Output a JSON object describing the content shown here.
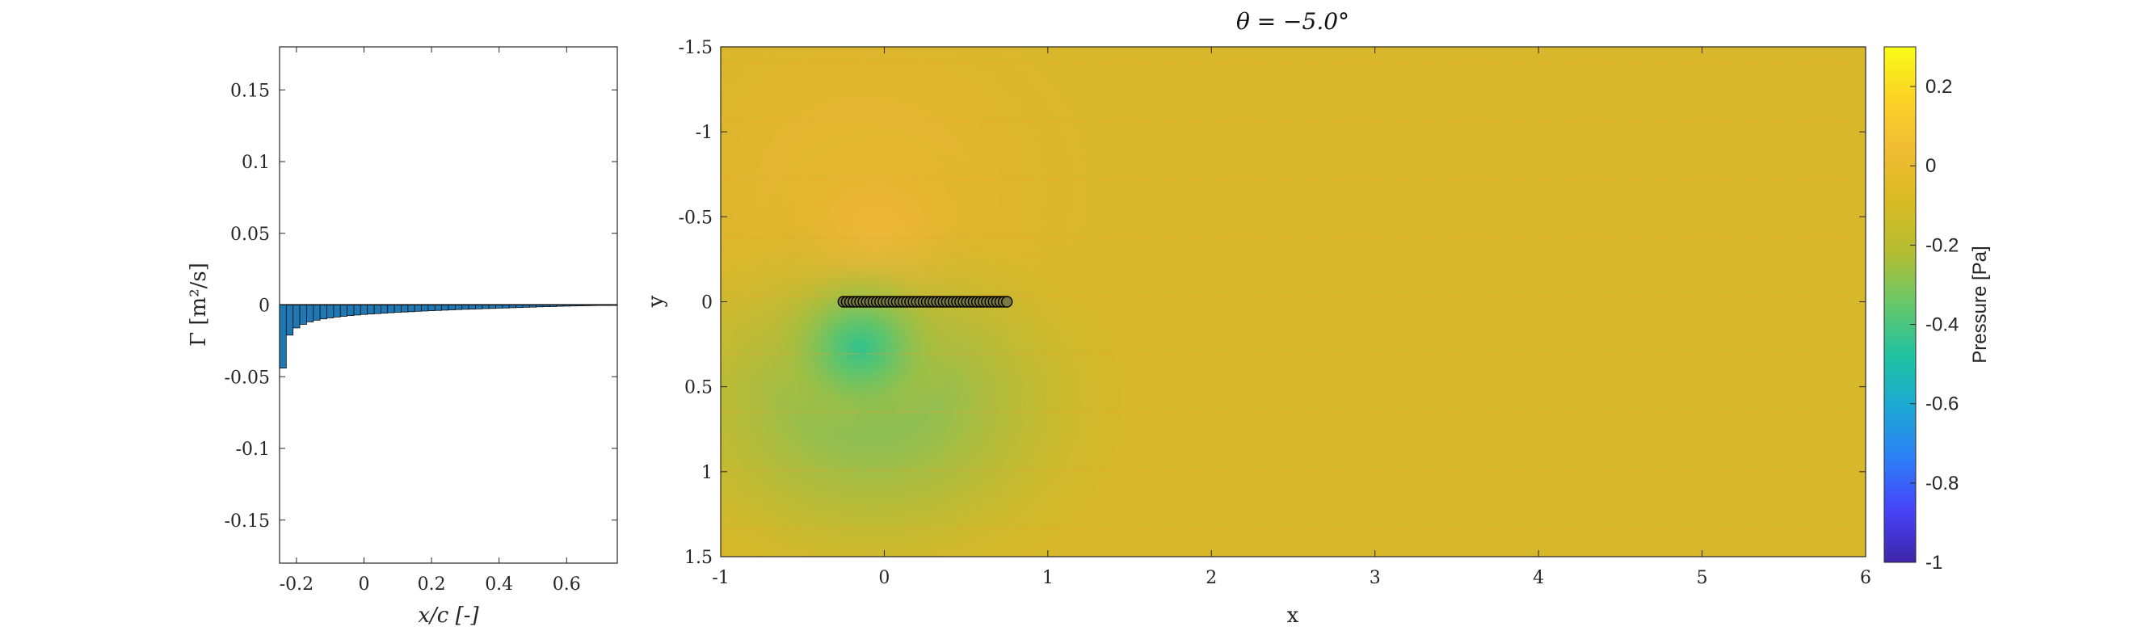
{
  "chart_data": [
    {
      "type": "bar",
      "name": "circulation",
      "xlabel": "x/c [-]",
      "ylabel": "Γ [m²/s]",
      "xlim": [
        -0.25,
        0.75
      ],
      "ylim": [
        -0.18,
        0.18
      ],
      "xticks": [
        -0.2,
        0,
        0.2,
        0.4,
        0.6
      ],
      "xtick_labels": [
        "-0.2",
        "0",
        "0.2",
        "0.4",
        "0.6"
      ],
      "yticks": [
        -0.15,
        -0.1,
        -0.05,
        0,
        0.05,
        0.1,
        0.15
      ],
      "ytick_labels": [
        "-0.15",
        "-0.1",
        "-0.05",
        "0",
        "0.05",
        "0.1",
        "0.15"
      ],
      "bar_color": "#1f78b4",
      "x": [
        -0.24,
        -0.22,
        -0.2,
        -0.18,
        -0.16,
        -0.14,
        -0.12,
        -0.1,
        -0.08,
        -0.06,
        -0.04,
        -0.02,
        0.0,
        0.02,
        0.04,
        0.06,
        0.08,
        0.1,
        0.12,
        0.14,
        0.16,
        0.18,
        0.2,
        0.22,
        0.24,
        0.26,
        0.28,
        0.3,
        0.32,
        0.34,
        0.36,
        0.38,
        0.4,
        0.42,
        0.44,
        0.46,
        0.48,
        0.5,
        0.52,
        0.54,
        0.56,
        0.58,
        0.6,
        0.62,
        0.64,
        0.66,
        0.68,
        0.7,
        0.72,
        0.74
      ],
      "values": [
        -0.044,
        -0.021,
        -0.016,
        -0.0135,
        -0.0118,
        -0.0106,
        -0.0097,
        -0.009,
        -0.0084,
        -0.0079,
        -0.0074,
        -0.007,
        -0.0066,
        -0.0063,
        -0.006,
        -0.0057,
        -0.0054,
        -0.0051,
        -0.0049,
        -0.0047,
        -0.0044,
        -0.0042,
        -0.004,
        -0.0038,
        -0.0036,
        -0.0034,
        -0.0032,
        -0.003,
        -0.0029,
        -0.0027,
        -0.0025,
        -0.0024,
        -0.0022,
        -0.0021,
        -0.0019,
        -0.0018,
        -0.0016,
        -0.0015,
        -0.0013,
        -0.0012,
        -0.0011,
        -0.0009,
        -0.0008,
        -0.0007,
        -0.0006,
        -0.0005,
        -0.0004,
        -0.0003,
        -0.0002,
        -0.0001
      ]
    },
    {
      "type": "heatmap",
      "name": "pressure-field",
      "title": "θ = −5.0°",
      "xlabel": "x",
      "ylabel": "y",
      "xlim": [
        -1,
        6
      ],
      "ylim": [
        -1.5,
        1.5
      ],
      "y_reversed": true,
      "xticks": [
        -1,
        0,
        1,
        2,
        3,
        4,
        5,
        6
      ],
      "xtick_labels": [
        "-1",
        "0",
        "1",
        "2",
        "3",
        "4",
        "5",
        "6"
      ],
      "yticks": [
        -1.5,
        -1,
        -0.5,
        0,
        0.5,
        1,
        1.5
      ],
      "ytick_labels": [
        "-1.5",
        "-1",
        "-0.5",
        "0",
        "0.5",
        "1",
        "1.5"
      ],
      "background_value": 0.0,
      "features": [
        {
          "kind": "high-pressure",
          "x": -0.05,
          "y": -0.25,
          "peak": 0.12
        },
        {
          "kind": "low-pressure",
          "x": -0.15,
          "y": 0.3,
          "peak": -0.2
        }
      ],
      "airfoil": {
        "x_start": -0.25,
        "x_end": 0.75,
        "y": 0,
        "n_nodes": 50
      },
      "colorbar": {
        "label": "Pressure [Pa]",
        "range": [
          -1,
          0.3
        ],
        "ticks": [
          0.2,
          0,
          -0.2,
          -0.4,
          -0.6,
          -0.8,
          -1
        ],
        "tick_labels": [
          "0.2",
          "0",
          "-0.2",
          "-0.4",
          "-0.6",
          "-0.8",
          "-1"
        ],
        "colormap": "parula",
        "stops": [
          "#3e26a8",
          "#4743f8",
          "#2c7ef7",
          "#1ca8d4",
          "#20c2a1",
          "#65c86a",
          "#b4bd32",
          "#d8ba24",
          "#f0bc33",
          "#fbd326",
          "#f9fb15"
        ]
      }
    }
  ]
}
